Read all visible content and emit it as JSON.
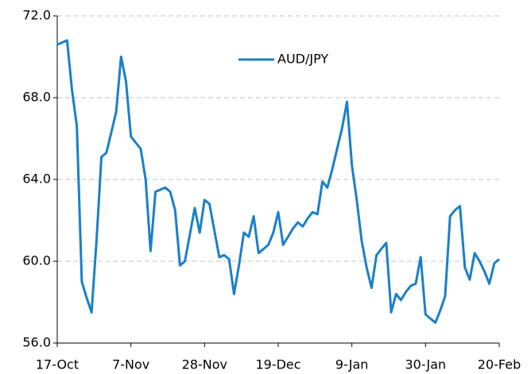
{
  "chart_data": {
    "type": "line",
    "categories": [
      "17-Oct",
      null,
      null,
      null,
      null,
      null,
      null,
      null,
      null,
      null,
      null,
      null,
      null,
      null,
      null,
      "7-Nov",
      null,
      null,
      null,
      null,
      null,
      null,
      null,
      null,
      null,
      null,
      null,
      null,
      null,
      null,
      "28-Nov",
      null,
      null,
      null,
      null,
      null,
      null,
      null,
      null,
      null,
      null,
      null,
      null,
      null,
      null,
      "19-Dec",
      null,
      null,
      null,
      null,
      null,
      null,
      null,
      null,
      null,
      null,
      null,
      null,
      null,
      null,
      "9-Jan",
      null,
      null,
      null,
      null,
      null,
      null,
      null,
      null,
      null,
      null,
      null,
      null,
      null,
      null,
      "30-Jan",
      null,
      null,
      null,
      null,
      null,
      null,
      null,
      null,
      null,
      null,
      null,
      null,
      null,
      null,
      "20-Feb"
    ],
    "series": [
      {
        "name": "AUD/JPY",
        "color": "#1a80c8",
        "values": [
          70.6,
          70.7,
          70.8,
          68.4,
          66.6,
          59.0,
          58.2,
          57.5,
          61.0,
          65.1,
          65.3,
          66.3,
          67.3,
          70.0,
          68.8,
          66.1,
          65.8,
          65.5,
          64.0,
          60.5,
          63.4,
          63.5,
          63.6,
          63.4,
          62.5,
          59.8,
          60.0,
          61.3,
          62.6,
          61.4,
          63.0,
          62.8,
          61.5,
          60.2,
          60.3,
          60.1,
          58.4,
          59.8,
          61.4,
          61.2,
          62.2,
          60.4,
          60.6,
          60.8,
          61.4,
          62.4,
          60.8,
          61.2,
          61.6,
          61.9,
          61.7,
          62.1,
          62.4,
          62.3,
          63.9,
          63.6,
          64.5,
          65.5,
          66.5,
          67.8,
          64.7,
          63.0,
          61.0,
          59.7,
          58.7,
          60.3,
          60.6,
          60.9,
          57.5,
          58.4,
          58.1,
          58.5,
          58.8,
          58.9,
          60.2,
          57.4,
          57.2,
          57.0,
          57.6,
          58.3,
          62.2,
          62.5,
          62.7,
          59.7,
          59.1,
          60.4,
          60.0,
          59.5,
          58.9,
          59.9,
          60.1
        ]
      }
    ],
    "ylim": [
      56,
      72
    ],
    "yticks": [
      {
        "value": 56,
        "label": "56.0"
      },
      {
        "value": 60,
        "label": "60.0"
      },
      {
        "value": 64,
        "label": "64.0"
      },
      {
        "value": 68,
        "label": "68.0"
      },
      {
        "value": 72,
        "label": "72.0"
      }
    ],
    "grid": true
  }
}
